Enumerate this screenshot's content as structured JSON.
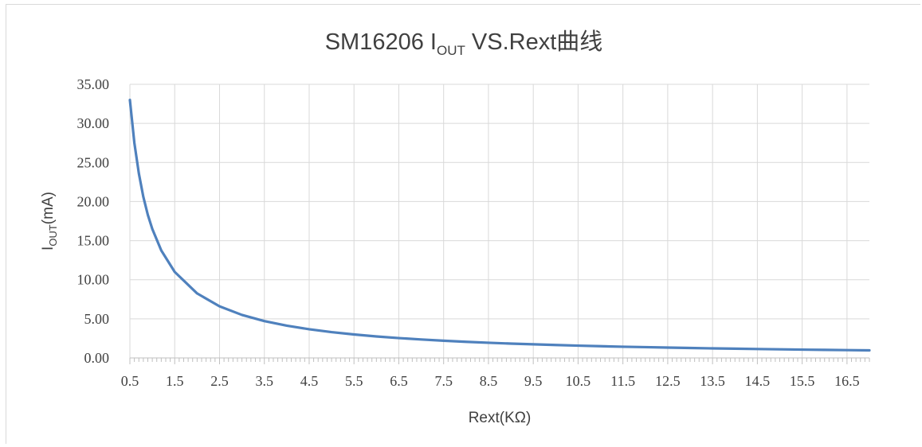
{
  "chart_data": {
    "type": "line",
    "title": {
      "main": "SM16206 I",
      "sub": "OUT",
      "rest": " VS.Rext曲线"
    },
    "xlabel": "Rext(KΩ)",
    "ylabel": {
      "main": "I",
      "sub": "OUT",
      "rest": "(mA)"
    },
    "xlim": [
      0.5,
      17.0
    ],
    "ylim": [
      0,
      35
    ],
    "x_ticks": [
      "0.5",
      "1.5",
      "2.5",
      "3.5",
      "4.5",
      "5.5",
      "6.5",
      "7.5",
      "8.5",
      "9.5",
      "10.5",
      "11.5",
      "12.5",
      "13.5",
      "14.5",
      "15.5",
      "16.5"
    ],
    "y_ticks": [
      "0.00",
      "5.00",
      "10.00",
      "15.00",
      "20.00",
      "25.00",
      "30.00",
      "35.00"
    ],
    "grid": true,
    "color": "#4f81bd",
    "series": [
      {
        "x": [
          0.5,
          0.6,
          0.7,
          0.8,
          0.9,
          1.0,
          1.2,
          1.5,
          2.0,
          2.5,
          3.0,
          3.5,
          4.0,
          4.5,
          5.0,
          5.5,
          6.0,
          6.5,
          7.0,
          7.5,
          8.0,
          8.5,
          9.0,
          9.5,
          10.0,
          10.5,
          11.0,
          11.5,
          12.0,
          12.5,
          13.0,
          13.5,
          14.0,
          14.5,
          15.0,
          15.5,
          16.0,
          16.5,
          17.0
        ],
        "values": [
          33.0,
          27.5,
          23.6,
          20.6,
          18.3,
          16.5,
          13.75,
          11.0,
          8.25,
          6.6,
          5.5,
          4.71,
          4.13,
          3.67,
          3.3,
          3.0,
          2.75,
          2.54,
          2.36,
          2.2,
          2.06,
          1.94,
          1.83,
          1.74,
          1.65,
          1.57,
          1.5,
          1.43,
          1.38,
          1.32,
          1.27,
          1.22,
          1.18,
          1.14,
          1.1,
          1.06,
          1.03,
          1.0,
          0.97
        ]
      }
    ]
  }
}
